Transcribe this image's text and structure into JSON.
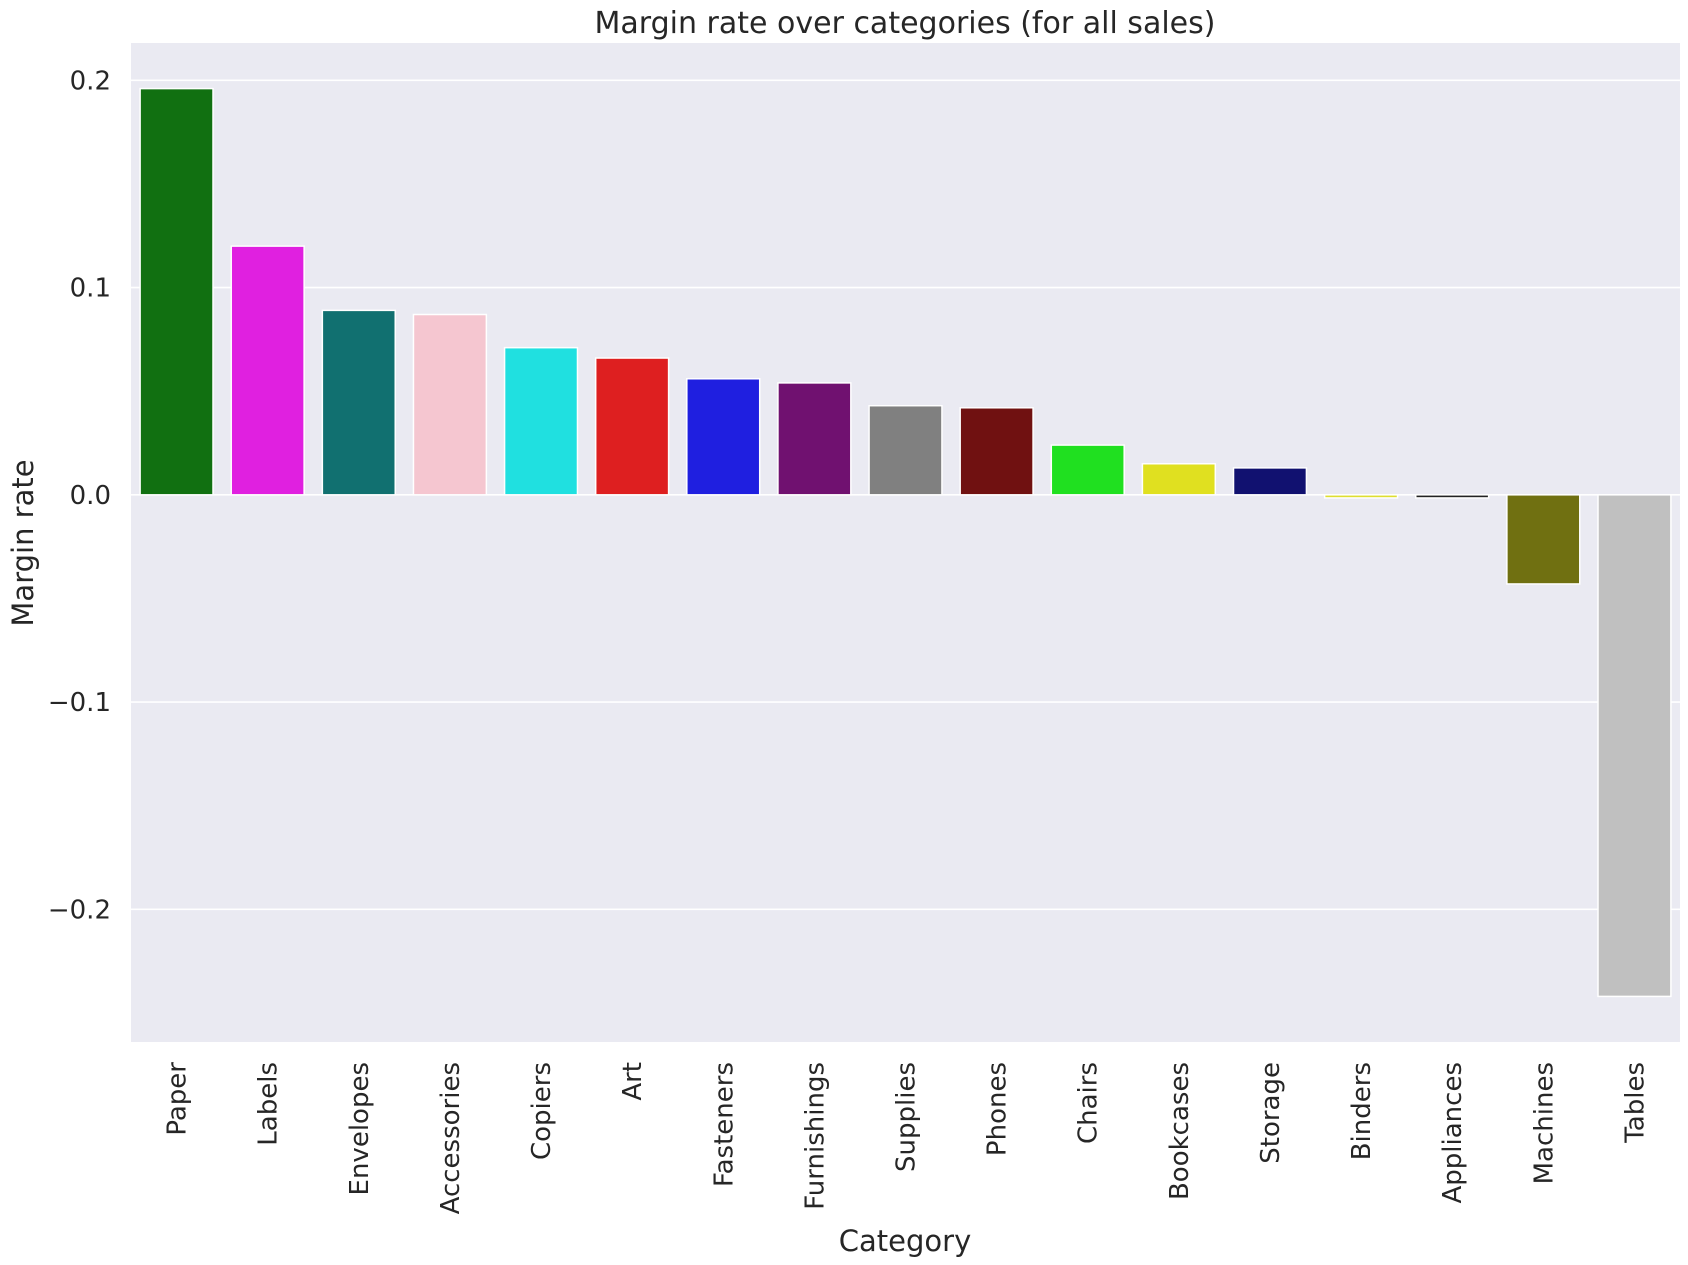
{
  "chart_data": {
    "type": "bar",
    "title": "Margin rate over categories (for all sales)",
    "xlabel": "Category",
    "ylabel": "Margin rate",
    "ylim": [
      -0.264,
      0.218
    ],
    "yticks": [
      0.2,
      0.1,
      0.0,
      -0.1,
      -0.2
    ],
    "ytick_labels": [
      "0.2",
      "0.1",
      "0.0",
      "−0.1",
      "−0.2"
    ],
    "grid": true,
    "categories": [
      "Paper",
      "Labels",
      "Envelopes",
      "Accessories",
      "Copiers",
      "Art",
      "Fasteners",
      "Furnishings",
      "Supplies",
      "Phones",
      "Chairs",
      "Bookcases",
      "Storage",
      "Binders",
      "Appliances",
      "Machines",
      "Tables"
    ],
    "values": [
      0.196,
      0.12,
      0.089,
      0.087,
      0.071,
      0.066,
      0.056,
      0.054,
      0.043,
      0.042,
      0.024,
      0.015,
      0.013,
      -0.0015,
      -0.0015,
      -0.043,
      -0.242
    ],
    "colors": [
      "#117011",
      "#e020e0",
      "#117070",
      "#f5c6d0",
      "#20e0e0",
      "#de1f20",
      "#1f1fe0",
      "#701170",
      "#808080",
      "#701111",
      "#20e020",
      "#e0e020",
      "#111170",
      "#dede30",
      "#222222",
      "#707011",
      "#c0c0c0"
    ],
    "plot_background": "#eaeaf2",
    "grid_color": "#ffffff"
  }
}
